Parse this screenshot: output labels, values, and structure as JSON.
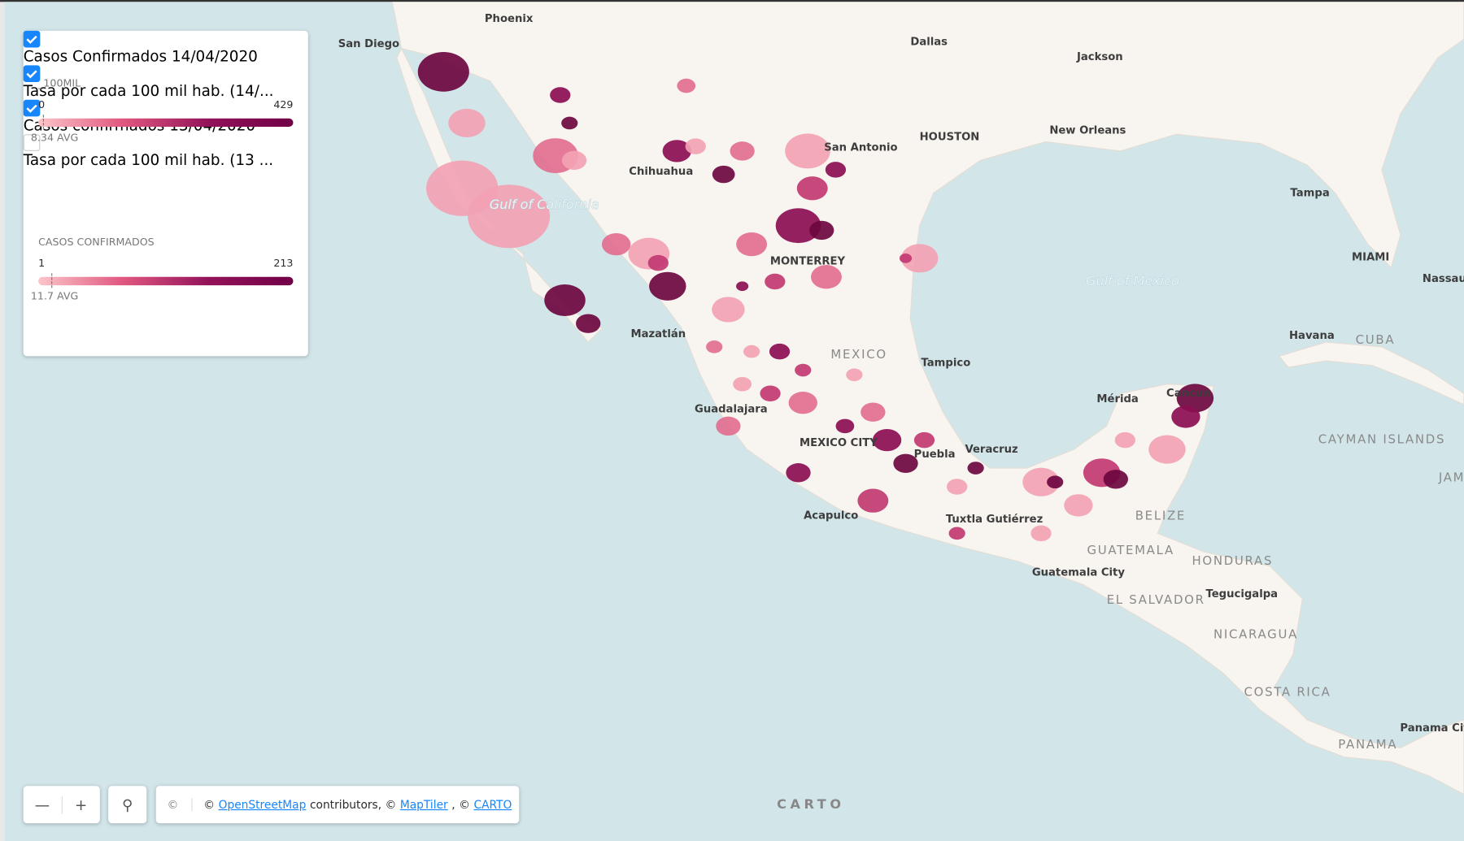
{
  "legend": {
    "layers": [
      {
        "label": "Casos Confirmados 14/04/2020",
        "checked": true,
        "scale_title": "_100MIL",
        "min": 0,
        "max": 429,
        "avg": 8.34,
        "avg_label": "8.34 AVG"
      },
      {
        "label": "Tasa por cada 100 mil hab. (14/...",
        "checked": true
      },
      {
        "label": "Casos confirmados 13/04/2020",
        "checked": true,
        "scale_title": "CASOS CONFIRMADOS",
        "min": 1,
        "max": 213,
        "avg": 11.7,
        "avg_label": "11.7 AVG"
      },
      {
        "label": "Tasa por cada 100 mil hab. (13 ...",
        "checked": false
      }
    ]
  },
  "map": {
    "labels": [
      "Phoenix",
      "San Diego",
      "Dallas",
      "Jackson",
      "HOUSTON",
      "New Orleans",
      "San Antonio",
      "Tampa",
      "Chihuahua",
      "Gulf of California",
      "MONTERREY",
      "Gulf of Mexico",
      "MIAMI",
      "Nassau",
      "Havana",
      "CUBA",
      "Mazatlán",
      "MEXICO",
      "Tampico",
      "Mérida",
      "Cancun",
      "Guadalajara",
      "MEXICO CITY",
      "Puebla",
      "Veracruz",
      "CAYMAN ISLANDS",
      "JAM",
      "Acapulco",
      "Tuxtla Gutiérrez",
      "BELIZE",
      "GUATEMALA",
      "HONDURAS",
      "Guatemala City",
      "Tegucigalpa",
      "EL SALVADOR",
      "NICARAGUA",
      "COSTA RICA",
      "Panama City",
      "PANAMA"
    ]
  },
  "controls": {
    "attribution": [
      "©",
      "©",
      "OpenStreetMap",
      "contributors, ©",
      "MapTiler",
      ", ©",
      "CARTO"
    ],
    "logo": "CARTO"
  }
}
